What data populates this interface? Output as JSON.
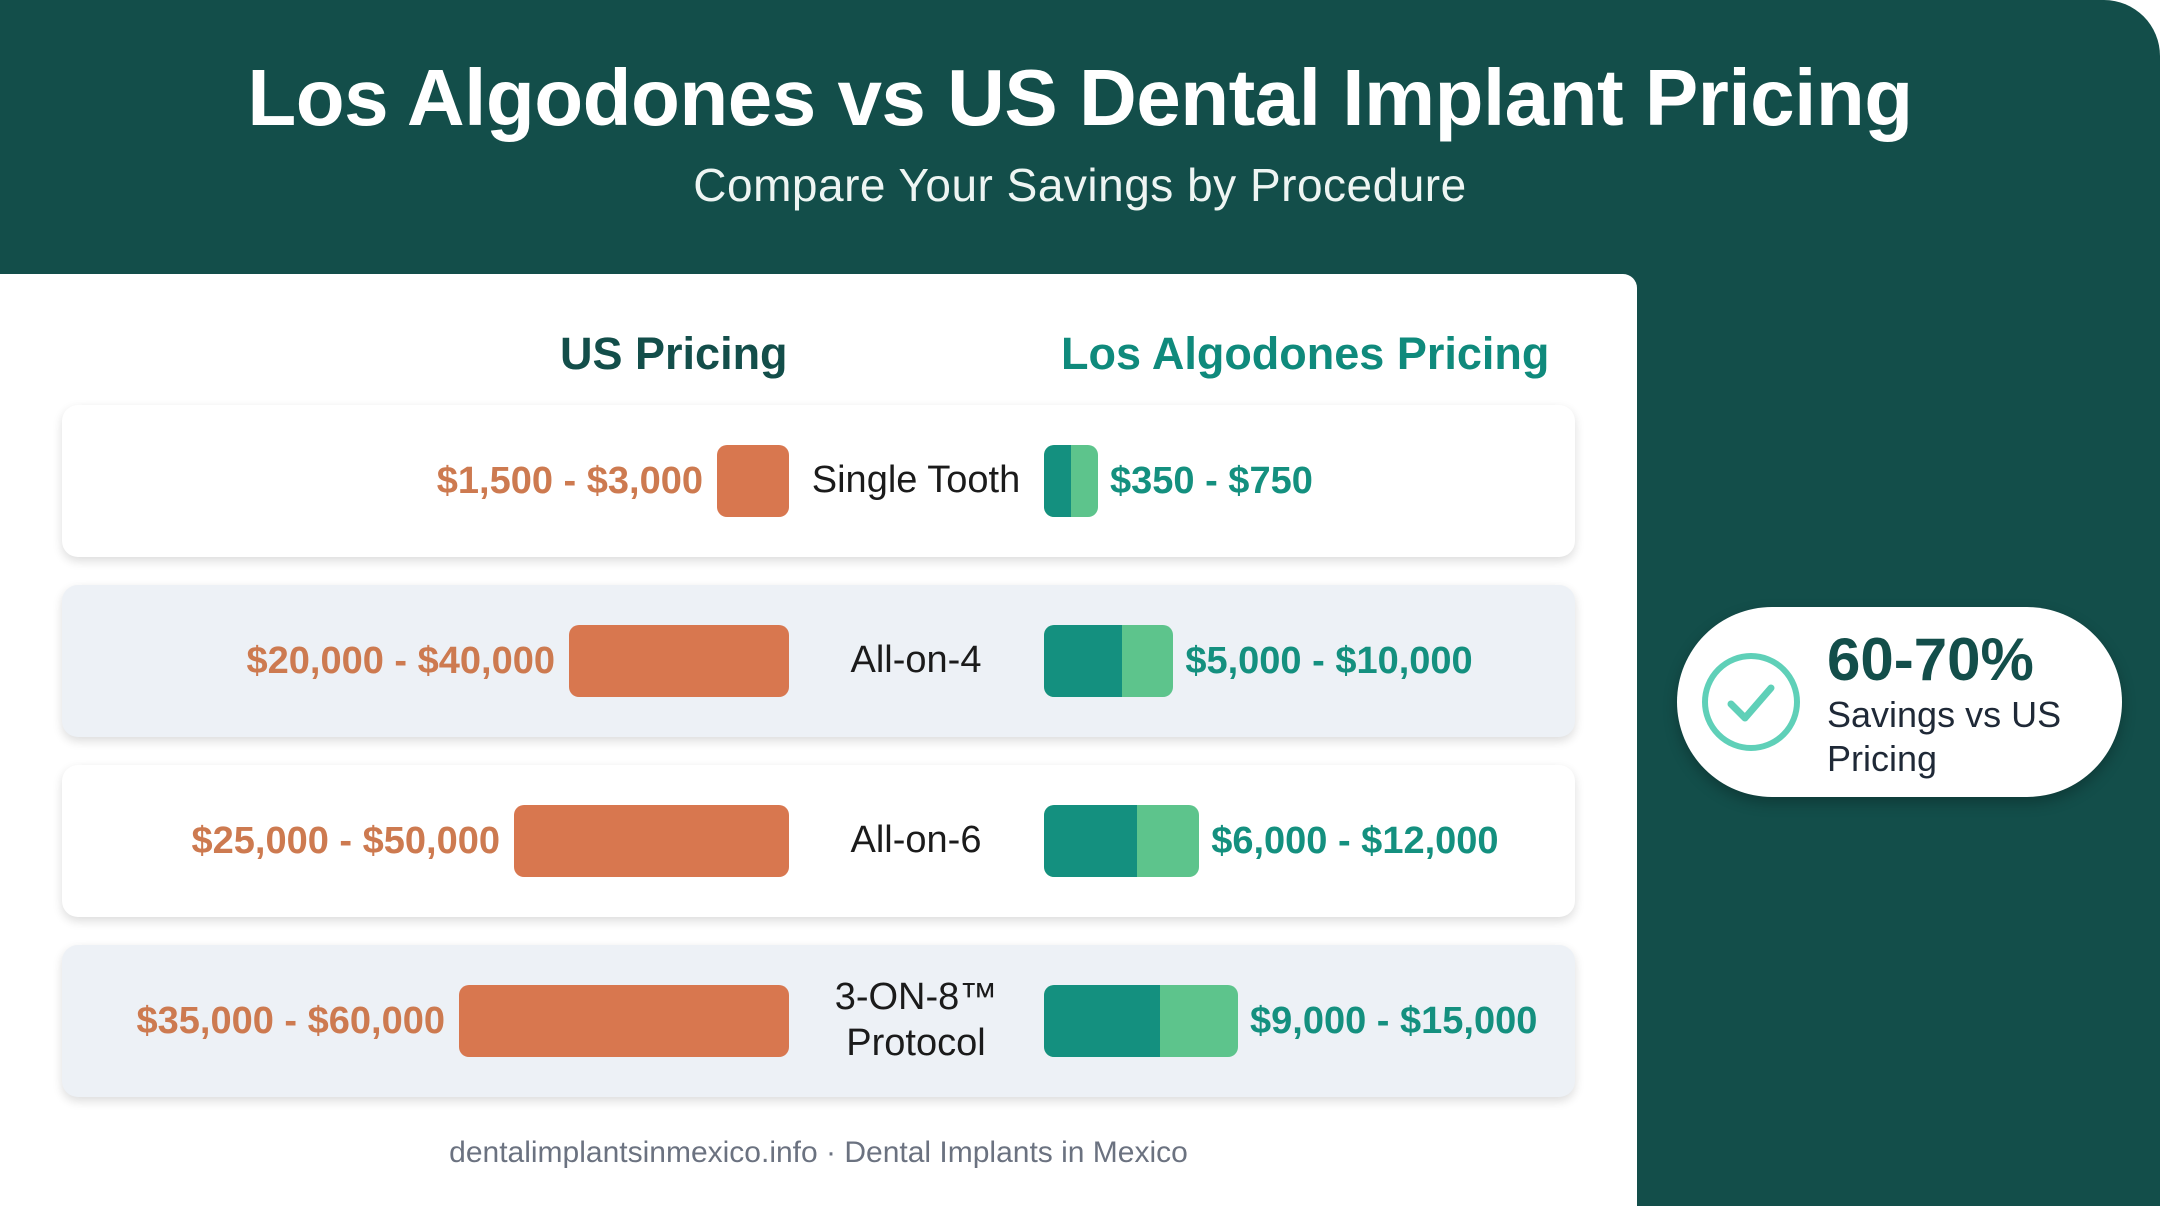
{
  "header": {
    "title": "Los Algodones vs US Dental Implant Pricing",
    "subtitle": "Compare Your Savings by Procedure"
  },
  "columns": {
    "us": "US Pricing",
    "la": "Los Algodones Pricing"
  },
  "chart_data": {
    "type": "bar",
    "title": "Los Algodones vs US Dental Implant Pricing",
    "categories": [
      "Single Tooth",
      "All-on-4",
      "All-on-6",
      "3-ON-8™ Protocol"
    ],
    "series": [
      {
        "name": "US Pricing",
        "color": "#d8774f",
        "ranges": [
          [
            1500,
            3000
          ],
          [
            20000,
            40000
          ],
          [
            25000,
            50000
          ],
          [
            35000,
            60000
          ]
        ],
        "labels": [
          "$1,500 - $3,000",
          "$20,000 - $40,000",
          "$25,000 - $50,000",
          "$35,000 - $60,000"
        ]
      },
      {
        "name": "Los Algodones Pricing",
        "colors": [
          "#14907f",
          "#5dc48c"
        ],
        "ranges": [
          [
            350,
            750
          ],
          [
            5000,
            10000
          ],
          [
            6000,
            12000
          ],
          [
            9000,
            15000
          ]
        ],
        "labels": [
          "$350 - $750",
          "$5,000 - $10,000",
          "$6,000 - $12,000",
          "$9,000 - $15,000"
        ]
      }
    ]
  },
  "badge": {
    "value": "60-70%",
    "text": "Savings vs US Pricing",
    "icon": "check-circle-icon",
    "icon_color": "#5fd0b8"
  },
  "footer": "dentalimplantsinmexico.info · Dental Implants in Mexico"
}
